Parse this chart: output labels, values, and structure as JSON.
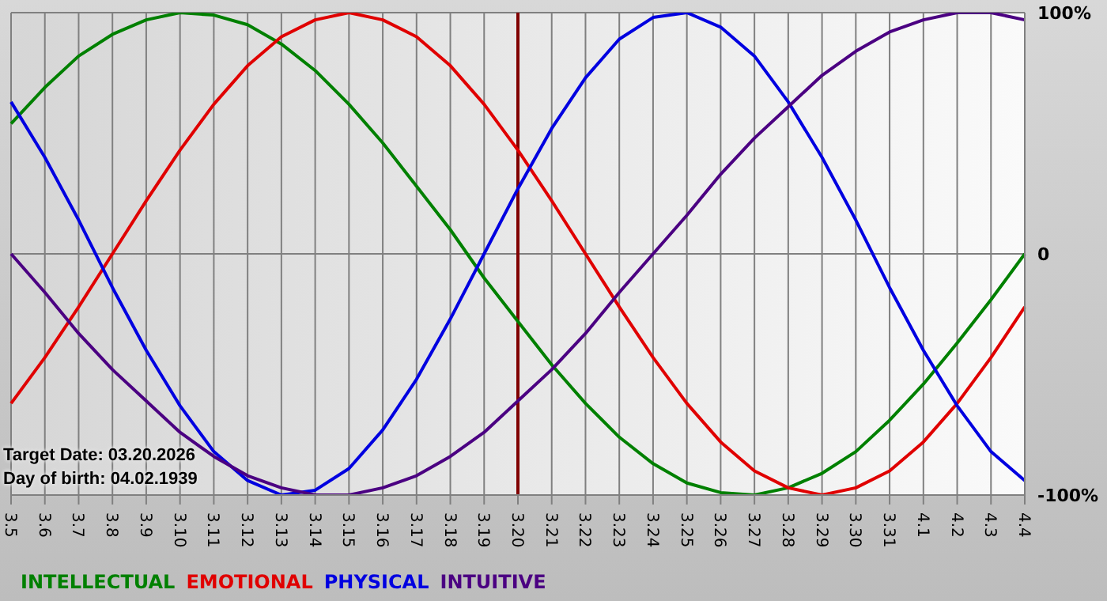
{
  "chart_data": {
    "type": "line",
    "categories": [
      "3.5",
      "3.6",
      "3.7",
      "3.8",
      "3.9",
      "3.10",
      "3.11",
      "3.12",
      "3.13",
      "3.14",
      "3.15",
      "3.16",
      "3.17",
      "3.18",
      "3.19",
      "3.20",
      "3.21",
      "3.22",
      "3.23",
      "3.24",
      "3.25",
      "3.26",
      "3.27",
      "3.28",
      "3.29",
      "3.30",
      "3.31",
      "4.1",
      "4.2",
      "4.3",
      "4.4"
    ],
    "series": [
      {
        "name": "INTELLECTUAL",
        "color": "#008000",
        "values": [
          54,
          69,
          82,
          91,
          97,
          100,
          99,
          95,
          87,
          76,
          62,
          46,
          28,
          10,
          -10,
          -28,
          -46,
          -62,
          -76,
          -87,
          -95,
          -99,
          -100,
          -97,
          -91,
          -82,
          -69,
          -54,
          -37,
          -19,
          0
        ]
      },
      {
        "name": "EMOTIONAL",
        "color": "#e00000",
        "values": [
          -62,
          -43,
          -22,
          0,
          22,
          43,
          62,
          78,
          90,
          97,
          100,
          97,
          90,
          78,
          62,
          43,
          22,
          0,
          -22,
          -43,
          -62,
          -78,
          -90,
          -97,
          -100,
          -97,
          -90,
          -78,
          -62,
          -43,
          -22
        ]
      },
      {
        "name": "PHYSICAL",
        "color": "#0000e0",
        "values": [
          63,
          40,
          14,
          -14,
          -40,
          -63,
          -82,
          -94,
          -100,
          -98,
          -89,
          -73,
          -52,
          -27,
          0,
          27,
          52,
          73,
          89,
          98,
          100,
          94,
          82,
          63,
          40,
          14,
          -14,
          -40,
          -63,
          -82,
          -94
        ]
      },
      {
        "name": "INTUITIVE",
        "color": "#4b0082",
        "values": [
          0,
          -16,
          -33,
          -48,
          -61,
          -74,
          -84,
          -92,
          -97,
          -100,
          -100,
          -97,
          -92,
          -84,
          -74,
          -61,
          -48,
          -33,
          -16,
          0,
          16,
          33,
          48,
          61,
          74,
          84,
          92,
          97,
          100,
          100,
          97
        ]
      }
    ],
    "ylim": [
      -100,
      100
    ],
    "yticks": [
      {
        "value": -100,
        "label": "-100%"
      },
      0,
      {
        "value": 100,
        "label": "100%"
      }
    ],
    "grid": true,
    "legend": "bottom left",
    "marker": "none",
    "line_style": "solid",
    "ref_lines": [
      {
        "axis": "x",
        "value": "3.20",
        "color": "#800000"
      }
    ],
    "annotations": [
      "Target Date: 03.20.2026",
      "Day of birth: 04.02.1939"
    ]
  }
}
